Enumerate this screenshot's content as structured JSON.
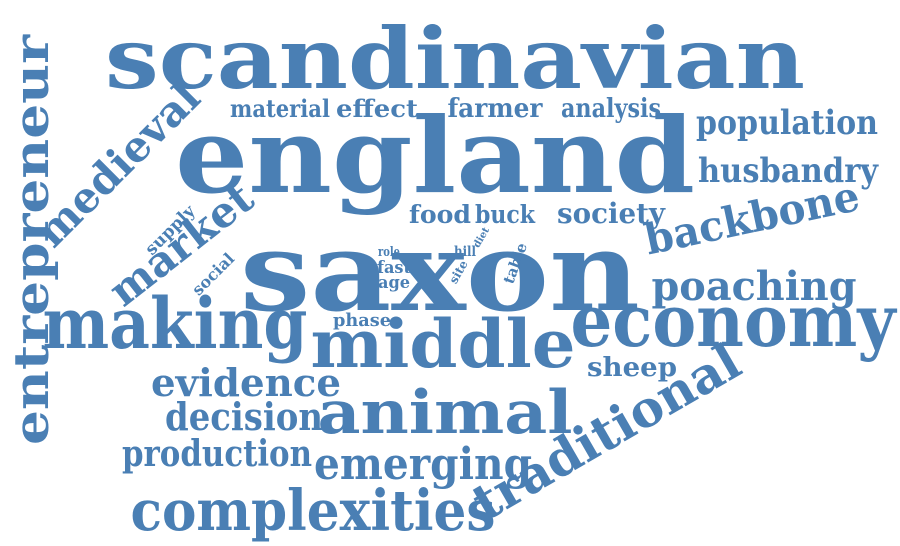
{
  "color": "#4a7fb4",
  "words": [
    {
      "id": "scandinavian",
      "text": "scandinavian"
    },
    {
      "id": "england",
      "text": "england"
    },
    {
      "id": "saxon",
      "text": "saxon"
    },
    {
      "id": "entrepreneur",
      "text": "entrepreneur"
    },
    {
      "id": "medieval",
      "text": "medieval"
    },
    {
      "id": "material",
      "text": "material"
    },
    {
      "id": "effect",
      "text": "effect"
    },
    {
      "id": "farmer",
      "text": "farmer"
    },
    {
      "id": "analysis",
      "text": "analysis"
    },
    {
      "id": "population",
      "text": "population"
    },
    {
      "id": "husbandry",
      "text": "husbandry"
    },
    {
      "id": "backbone",
      "text": "backbone"
    },
    {
      "id": "food",
      "text": "food"
    },
    {
      "id": "buck",
      "text": "buck"
    },
    {
      "id": "society",
      "text": "society"
    },
    {
      "id": "market",
      "text": "market"
    },
    {
      "id": "supply",
      "text": "supply"
    },
    {
      "id": "social",
      "text": "social"
    },
    {
      "id": "role",
      "text": "role"
    },
    {
      "id": "fast",
      "text": "fast"
    },
    {
      "id": "age",
      "text": "age"
    },
    {
      "id": "hill",
      "text": "hill"
    },
    {
      "id": "site",
      "text": "site"
    },
    {
      "id": "diet",
      "text": "diet"
    },
    {
      "id": "table",
      "text": "table"
    },
    {
      "id": "poaching",
      "text": "poaching"
    },
    {
      "id": "making",
      "text": "making"
    },
    {
      "id": "phase",
      "text": "phase"
    },
    {
      "id": "middle",
      "text": "middle"
    },
    {
      "id": "economy",
      "text": "economy"
    },
    {
      "id": "sheep",
      "text": "sheep"
    },
    {
      "id": "evidence",
      "text": "evidence"
    },
    {
      "id": "decision",
      "text": "decision"
    },
    {
      "id": "animal",
      "text": "animal"
    },
    {
      "id": "traditional",
      "text": "traditional"
    },
    {
      "id": "production",
      "text": "production"
    },
    {
      "id": "emerging",
      "text": "emerging"
    },
    {
      "id": "complexities",
      "text": "complexities"
    }
  ]
}
